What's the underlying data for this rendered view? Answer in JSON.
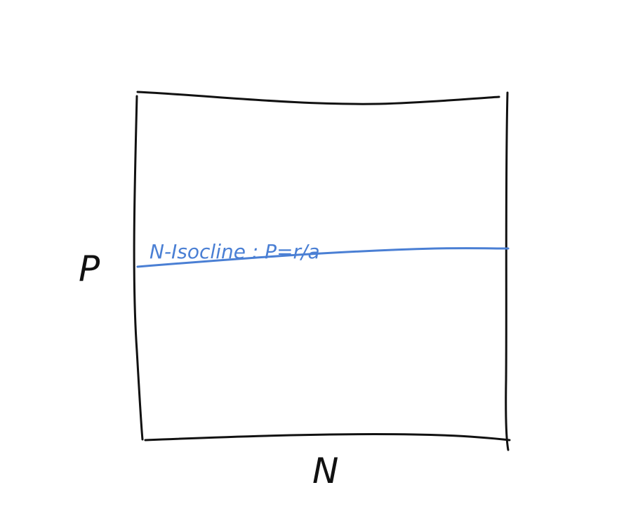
{
  "diagram": {
    "x_axis_label": "N",
    "y_axis_label": "P",
    "isocline": {
      "label": "N-Isocline : P=r/a",
      "color": "#4a7fd4"
    },
    "frame_color": "#111111"
  }
}
